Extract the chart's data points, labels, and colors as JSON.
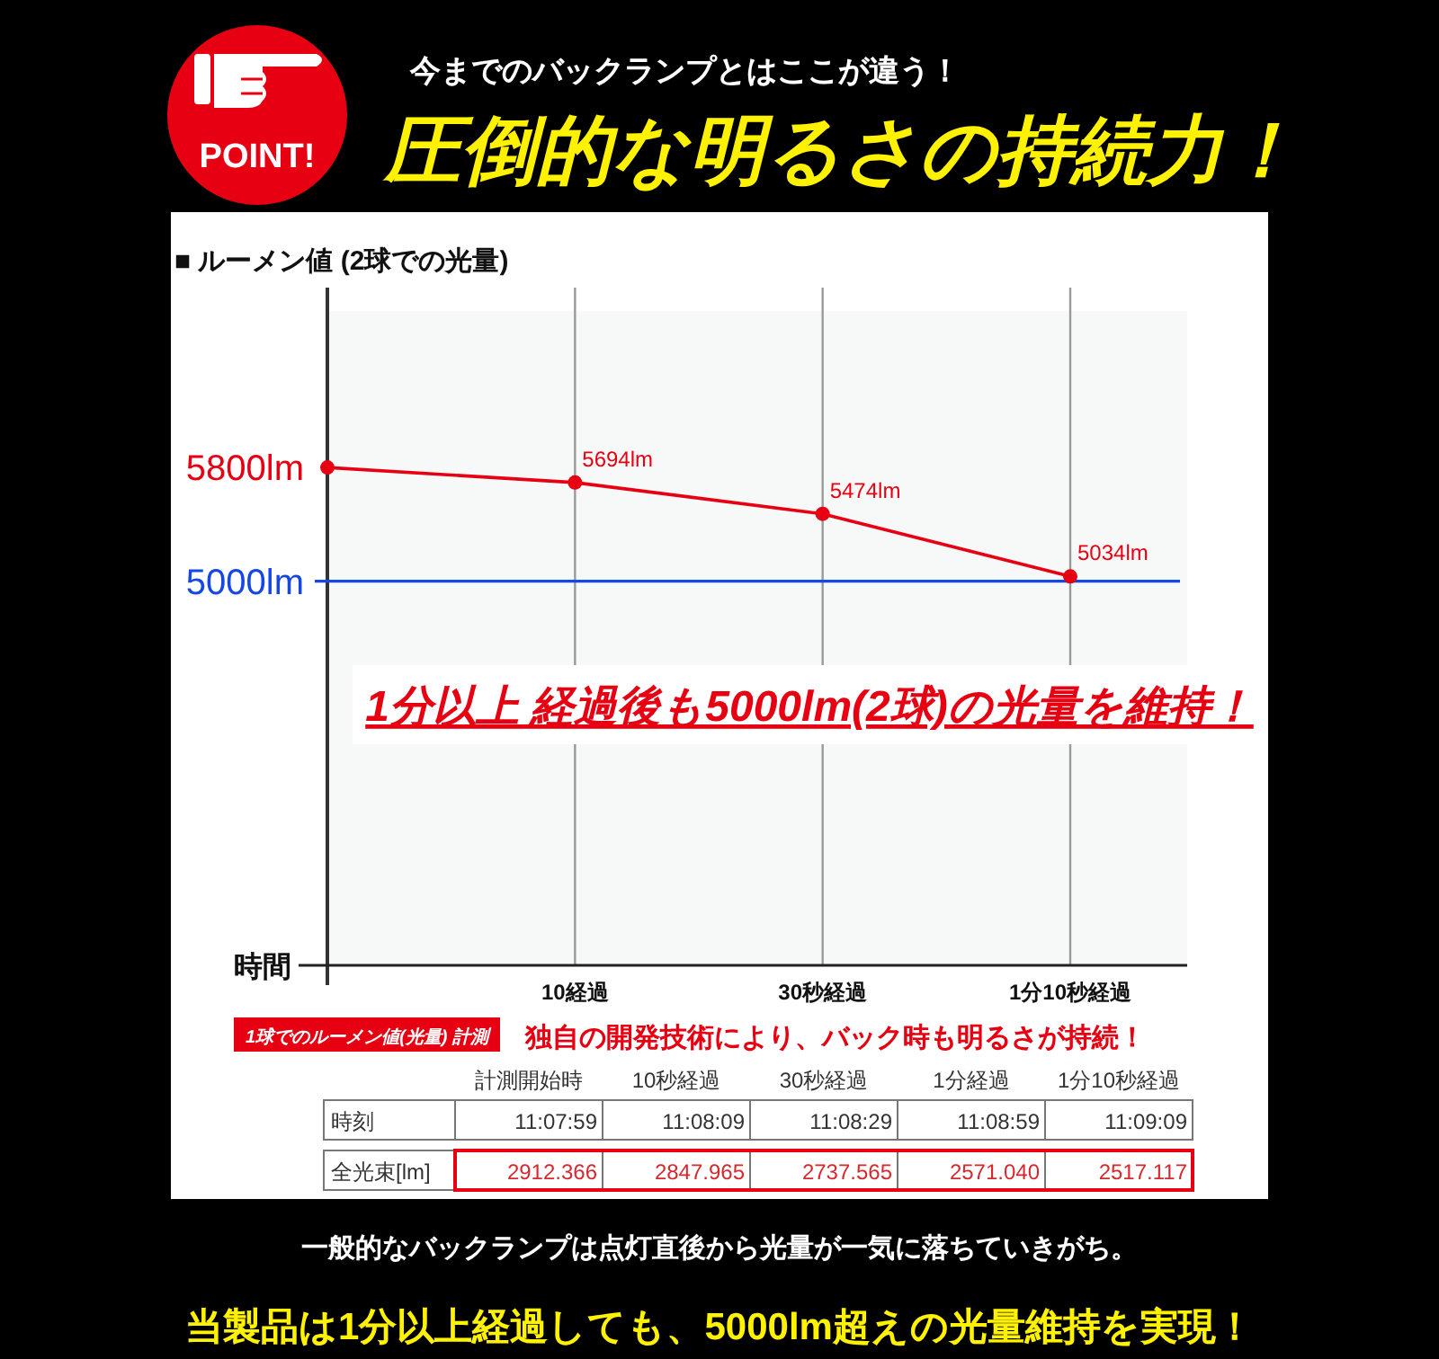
{
  "chart_data": [
    {
      "type": "line",
      "title": "圧倒的な明るさの持続力！",
      "subtitle": "今までのバックランプとはここが違う！",
      "ylabel": "■ ルーメン値 (2球での光量)",
      "xlabel": "時間",
      "categories": [
        null,
        "10経過",
        "30秒経過",
        "1分10秒経過"
      ],
      "series": [
        {
          "color": "#e60012",
          "values": [
            5800,
            5694,
            5474,
            5034
          ],
          "value_labels": [
            null,
            "5694lm",
            "5474lm",
            "5034lm"
          ]
        }
      ],
      "ylim": [
        2300,
        6900
      ],
      "yticks": [
        {
          "value": 5800,
          "label": "5800lm"
        },
        {
          "value": 5000,
          "label": "5000lm"
        }
      ],
      "ref_lines": [
        {
          "axis": "y",
          "value": 5000,
          "color": "#1447e6"
        }
      ],
      "grid": "x",
      "marker": "circle",
      "annotations": [
        "POINT!",
        "1分以上 経過後も5000lm(2球)の光量を維持！"
      ]
    },
    {
      "type": "other",
      "title": "1球でのルーメン値(光量) 計測",
      "subtitle": "独自の開発技術により、バック時も明るさが持続！",
      "categories": [
        "計測開始時",
        "10秒経過",
        "30秒経過",
        "1分経過",
        "1分10秒経過"
      ],
      "y_categories": [
        "時刻",
        "全光束[lm]"
      ],
      "cell_labels": [
        [
          "11:07:59",
          "11:08:09",
          "11:08:29",
          "11:08:59",
          "11:09:09"
        ],
        [
          "2912.366",
          "2847.965",
          "2737.565",
          "2571.040",
          "2517.117"
        ]
      ],
      "annotations": [
        "一般的なバックランプは点灯直後から光量が一気に落ちていきがち。",
        "当製品は1分以上経過しても、5000lm超えの光量維持を実現！"
      ]
    }
  ]
}
